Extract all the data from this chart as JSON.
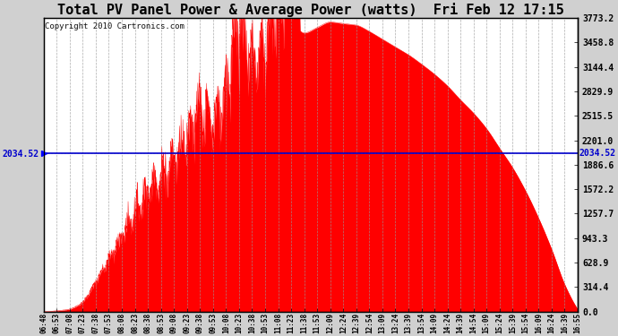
{
  "title": "Total PV Panel Power & Average Power (watts)  Fri Feb 12 17:15",
  "copyright": "Copyright 2010 Cartronics.com",
  "avg_line_value": 2034.52,
  "ymax": 3773.2,
  "ymin": 0.0,
  "yticks": [
    0.0,
    314.4,
    628.9,
    943.3,
    1257.7,
    1572.2,
    1886.6,
    2201.0,
    2515.5,
    2829.9,
    3144.4,
    3458.8,
    3773.2
  ],
  "fill_color": "#FF0000",
  "line_color": "#0000CD",
  "bg_color": "#D0D0D0",
  "plot_bg_color": "#FFFFFF",
  "title_fontsize": 11,
  "copyright_fontsize": 6.5,
  "xtick_labels": [
    "06:48",
    "06:53",
    "07:08",
    "07:23",
    "07:38",
    "07:53",
    "08:08",
    "08:23",
    "08:38",
    "08:53",
    "09:08",
    "09:23",
    "09:38",
    "09:53",
    "10:08",
    "10:23",
    "10:38",
    "10:53",
    "11:08",
    "11:23",
    "11:38",
    "11:53",
    "12:09",
    "12:24",
    "12:39",
    "12:54",
    "13:09",
    "13:24",
    "13:39",
    "13:54",
    "14:09",
    "14:24",
    "14:39",
    "14:54",
    "15:09",
    "15:24",
    "15:39",
    "15:54",
    "16:09",
    "16:24",
    "16:39",
    "16:55"
  ]
}
